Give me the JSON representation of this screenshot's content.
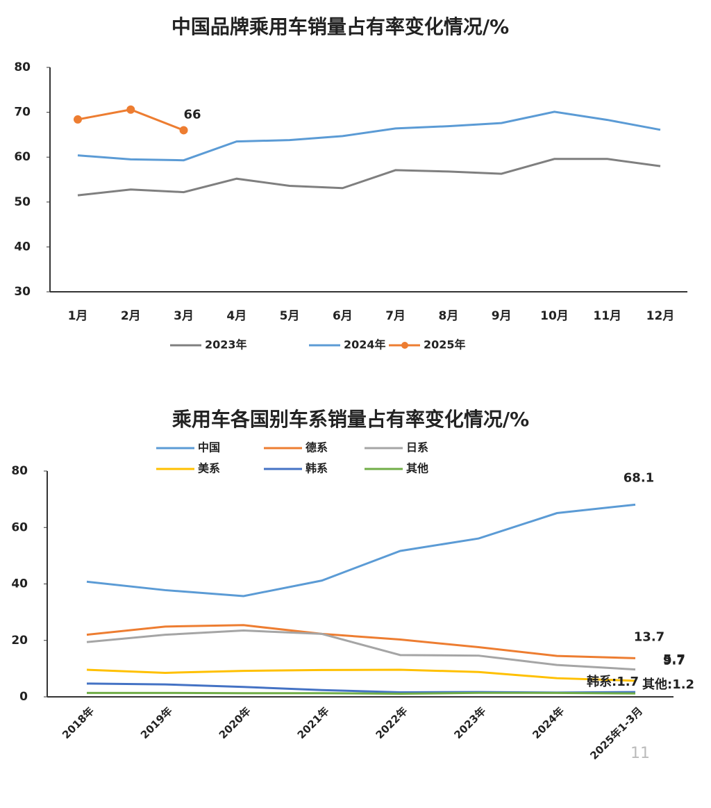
{
  "chart_data": [
    {
      "type": "line",
      "title": "中国品牌乘用车销量占有率变化情况/%",
      "categories": [
        "1月",
        "2月",
        "3月",
        "4月",
        "5月",
        "6月",
        "7月",
        "8月",
        "9月",
        "10月",
        "11月",
        "12月"
      ],
      "ylim": [
        30,
        80
      ],
      "yticks": [
        30,
        40,
        50,
        60,
        70,
        80
      ],
      "legend": "bottom",
      "series": [
        {
          "name": "2023年",
          "color": "#7f7f7f",
          "values": [
            51.5,
            52.8,
            52.2,
            55.2,
            53.6,
            53.1,
            57.1,
            56.8,
            56.3,
            59.6,
            59.6,
            58.0
          ]
        },
        {
          "name": "2024年",
          "color": "#5b9bd5",
          "values": [
            60.4,
            59.5,
            59.3,
            63.5,
            63.8,
            64.7,
            66.4,
            66.9,
            67.6,
            70.1,
            68.3,
            66.1
          ]
        },
        {
          "name": "2025年",
          "color": "#ed7d31",
          "markers": true,
          "label_last": true,
          "values": [
            68.4,
            70.6,
            66,
            null,
            null,
            null,
            null,
            null,
            null,
            null,
            null,
            null
          ]
        }
      ]
    },
    {
      "type": "line",
      "title": "乘用车各国别车系销量占有率变化情况/%",
      "categories": [
        "2018年",
        "2019年",
        "2020年",
        "2021年",
        "2022年",
        "2023年",
        "2024年",
        "2025年1-3月"
      ],
      "ylim": [
        0,
        80
      ],
      "yticks": [
        0,
        20,
        40,
        60,
        80
      ],
      "legend": "top",
      "series": [
        {
          "name": "中国",
          "color": "#5b9bd5",
          "label_last": true,
          "values": [
            40.8,
            37.8,
            35.7,
            41.2,
            51.7,
            56.1,
            65.1,
            68.1
          ]
        },
        {
          "name": "德系",
          "color": "#ed7d31",
          "label_last": true,
          "values": [
            22.0,
            24.9,
            25.4,
            22.3,
            20.3,
            17.6,
            14.5,
            13.7
          ]
        },
        {
          "name": "日系",
          "color": "#a5a5a5",
          "label_last": true,
          "values": [
            19.4,
            22.0,
            23.5,
            22.3,
            14.8,
            14.6,
            11.3,
            9.7
          ]
        },
        {
          "name": "美系",
          "color": "#ffc000",
          "label_last": true,
          "values": [
            9.6,
            8.5,
            9.2,
            9.5,
            9.6,
            8.8,
            6.6,
            5.7
          ]
        },
        {
          "name": "韩系",
          "color": "#4472c4",
          "values": [
            4.7,
            4.4,
            3.5,
            2.4,
            1.6,
            1.7,
            1.5,
            1.7
          ],
          "value_labels": [
            null,
            null,
            null,
            null,
            null,
            null,
            null,
            "韩系:1.7"
          ]
        },
        {
          "name": "其他",
          "color": "#70ad47",
          "values": [
            1.4,
            1.4,
            1.3,
            1.3,
            1.1,
            1.4,
            1.4,
            1.2
          ],
          "value_labels": [
            null,
            null,
            null,
            null,
            null,
            null,
            null,
            "其他:1.2"
          ]
        }
      ]
    }
  ],
  "page_number": "11"
}
